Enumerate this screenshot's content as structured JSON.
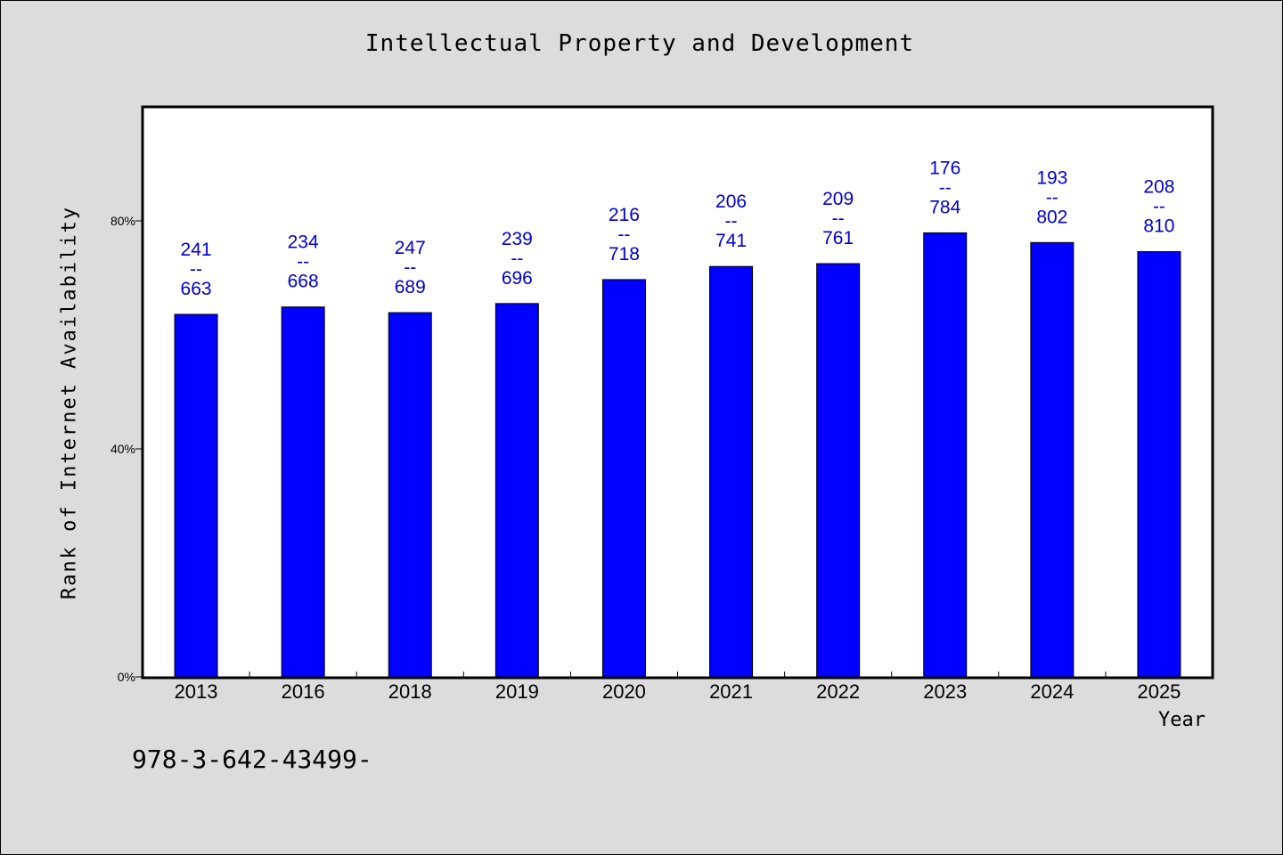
{
  "chart_data": {
    "type": "bar",
    "title": "Intellectual Property and Development",
    "xlabel": "Year",
    "ylabel": "Rank of Internet Availability",
    "categories": [
      "2013",
      "2016",
      "2018",
      "2019",
      "2020",
      "2021",
      "2022",
      "2023",
      "2024",
      "2025"
    ],
    "values": [
      63.6,
      64.9,
      63.9,
      65.5,
      69.7,
      72.0,
      72.5,
      77.9,
      76.2,
      74.6
    ],
    "data_labels": [
      {
        "top": "241",
        "sep": "--",
        "bottom": "663"
      },
      {
        "top": "234",
        "sep": "--",
        "bottom": "668"
      },
      {
        "top": "247",
        "sep": "--",
        "bottom": "689"
      },
      {
        "top": "239",
        "sep": "--",
        "bottom": "696"
      },
      {
        "top": "216",
        "sep": "--",
        "bottom": "718"
      },
      {
        "top": "206",
        "sep": "--",
        "bottom": "741"
      },
      {
        "top": "209",
        "sep": "--",
        "bottom": "761"
      },
      {
        "top": "176",
        "sep": "--",
        "bottom": "784"
      },
      {
        "top": "193",
        "sep": "--",
        "bottom": "802"
      },
      {
        "top": "208",
        "sep": "--",
        "bottom": "810"
      }
    ],
    "yticks": [
      {
        "value": 0,
        "label": "0%"
      },
      {
        "value": 40,
        "label": "40%"
      },
      {
        "value": 80,
        "label": "80%"
      }
    ],
    "ylim": [
      0,
      100
    ],
    "grid": false,
    "legend": "none",
    "colors": {
      "bar": "#0000ff",
      "label": "#0000cc",
      "plot_bg": "#ffffff",
      "page_bg": "#dcdcdc"
    }
  },
  "footnote": "978-3-642-43499-"
}
